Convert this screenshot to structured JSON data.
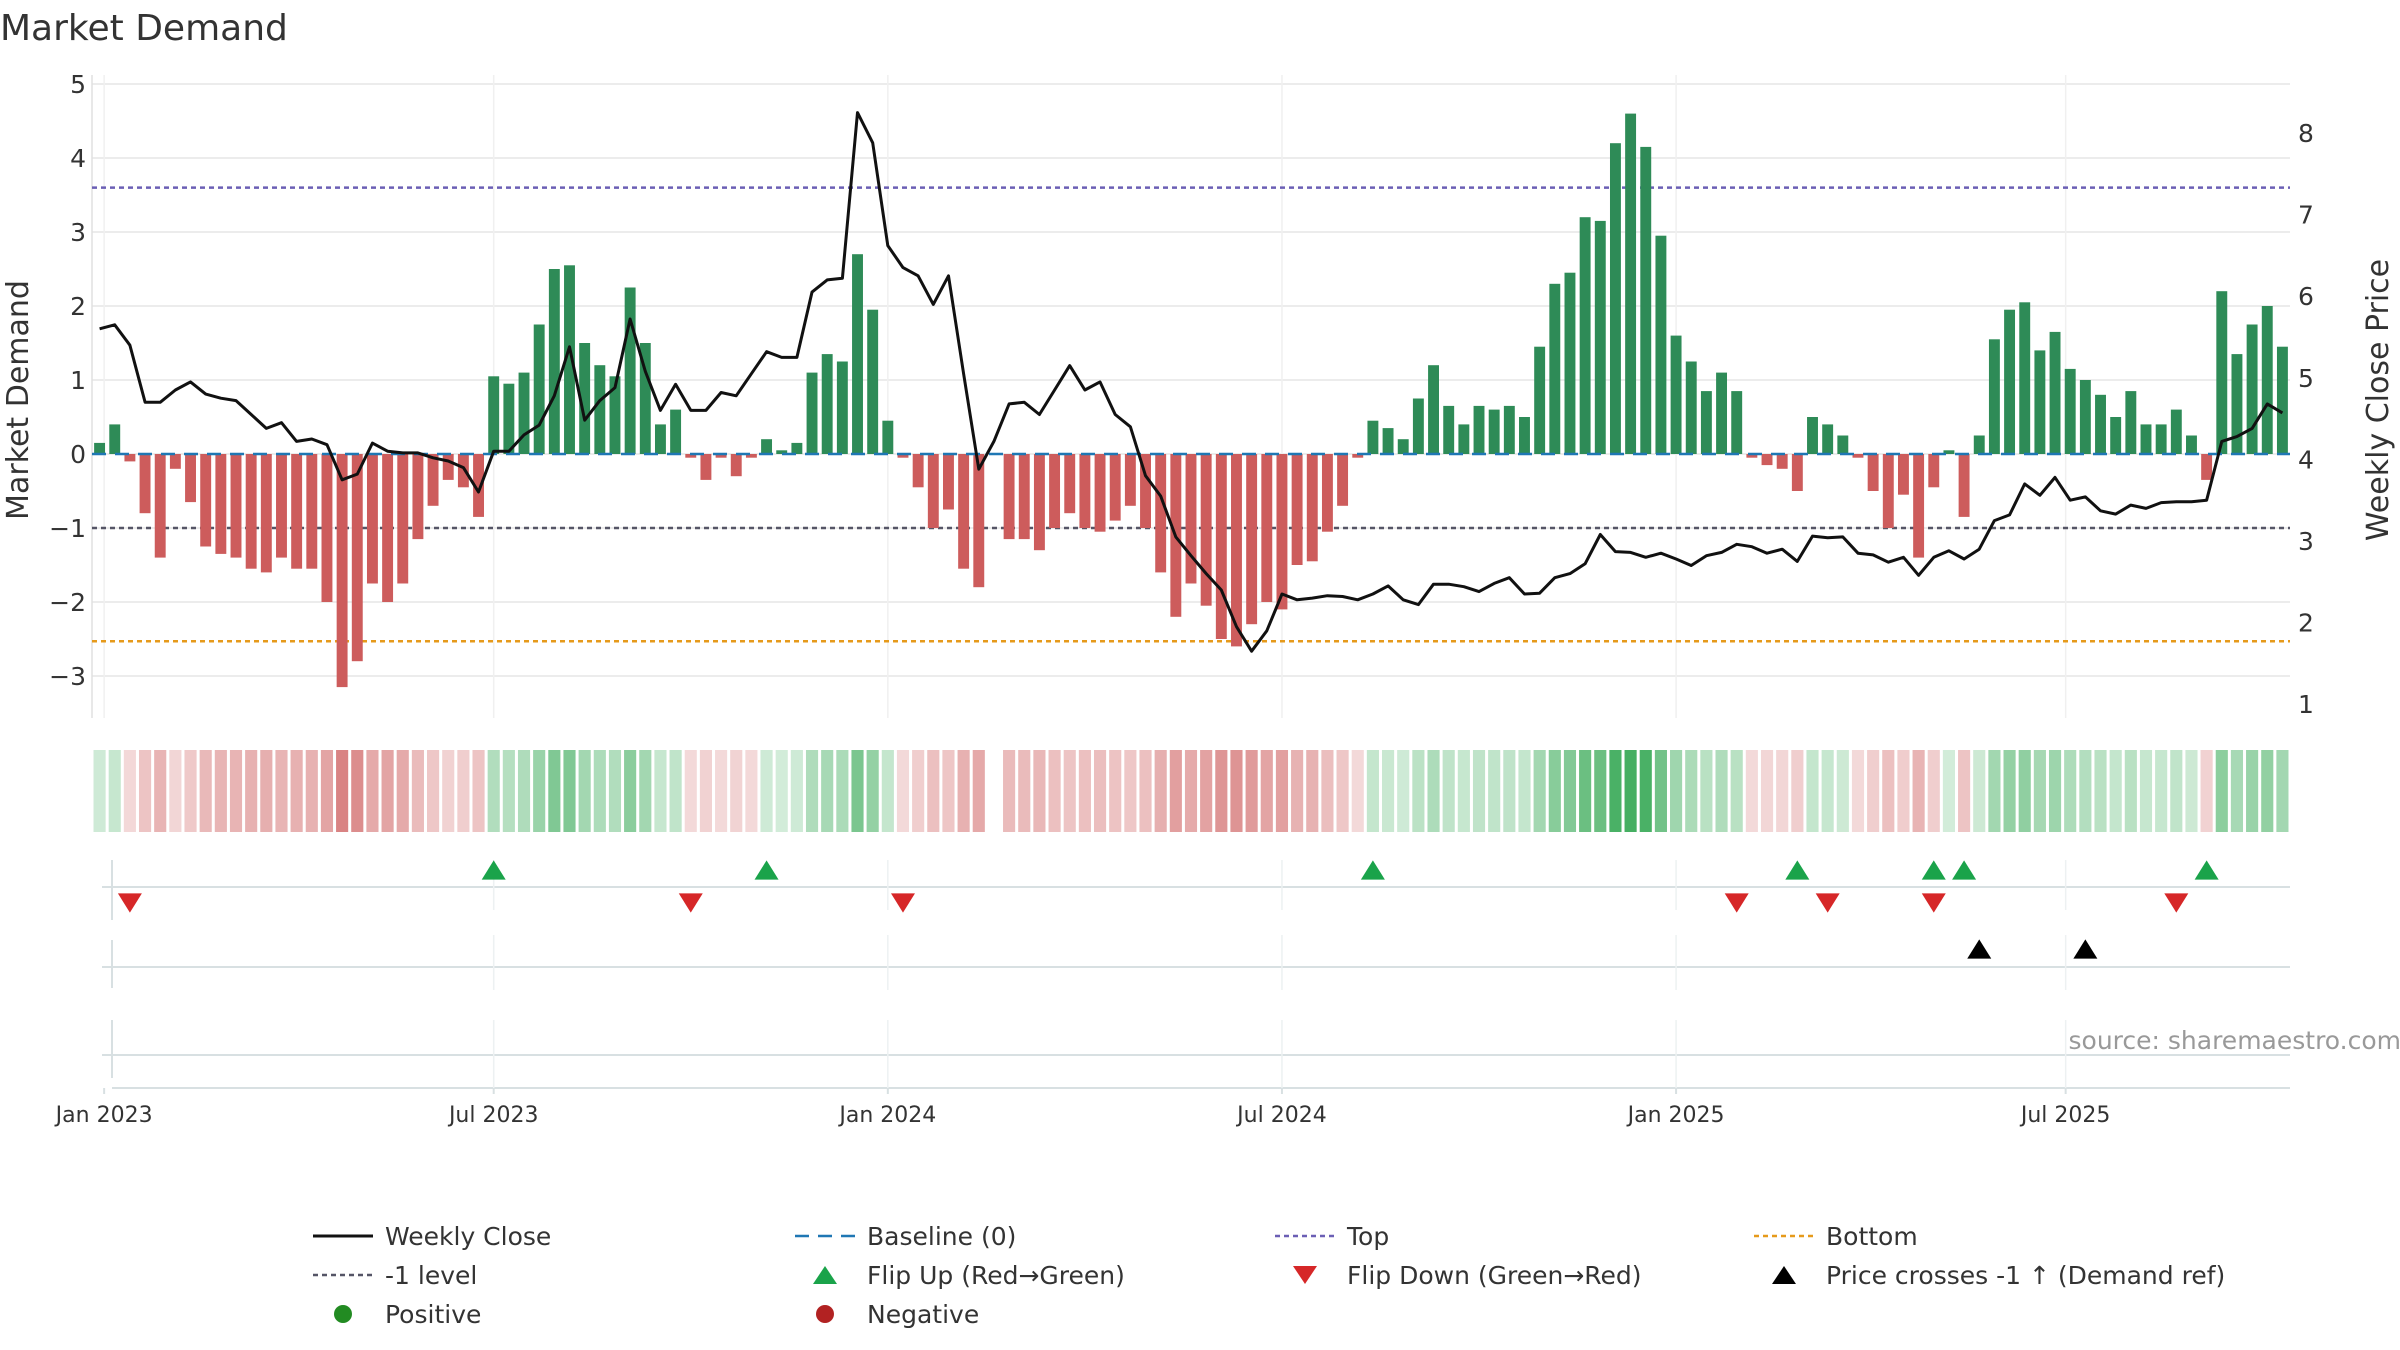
{
  "chart_data": {
    "type": "bar",
    "title": "Market Demand",
    "ylabel": "Market Demand",
    "y2label": "Weekly Close Price",
    "ylim": [
      -3.5,
      5
    ],
    "y2lim": [
      0.8,
      8.7
    ],
    "y_ticks": [
      "5",
      "4",
      "3",
      "2",
      "1",
      "0",
      "−1",
      "−2",
      "−3"
    ],
    "y_tick_values": [
      5,
      4,
      3,
      2,
      1,
      0,
      -1,
      -2,
      -3
    ],
    "y2_ticks": [
      "8",
      "7",
      "6",
      "5",
      "4",
      "3",
      "2",
      "1"
    ],
    "y2_tick_values": [
      8,
      7,
      6,
      5,
      4,
      3,
      2,
      1
    ],
    "x_ticks": [
      "Jan 2023",
      "Jul 2023",
      "Jan 2024",
      "Jul 2024",
      "Jan 2025",
      "Jul 2025"
    ],
    "x_tick_weeks": [
      0.3,
      26,
      52,
      78,
      104,
      129.7
    ],
    "reference_lines": {
      "top": 3.6,
      "bottom": -2.53,
      "minus_one": -1,
      "baseline": 0
    },
    "demand": [
      0.15,
      0.4,
      -0.1,
      -0.8,
      -1.4,
      -0.2,
      -0.65,
      -1.25,
      -1.35,
      -1.4,
      -1.55,
      -1.6,
      -1.4,
      -1.55,
      -1.55,
      -2.0,
      -3.15,
      -2.8,
      -1.75,
      -2.0,
      -1.75,
      -1.15,
      -0.7,
      -0.35,
      -0.45,
      -0.85,
      1.05,
      0.95,
      1.1,
      1.75,
      2.5,
      2.55,
      1.5,
      1.2,
      1.05,
      2.25,
      1.5,
      0.4,
      0.6,
      -0.05,
      -0.35,
      -0.05,
      -0.3,
      -0.05,
      0.2,
      0.05,
      0.15,
      1.1,
      1.35,
      1.25,
      2.7,
      1.95,
      0.45,
      -0.05,
      -0.45,
      -1.0,
      -0.75,
      -1.55,
      -1.8,
      null,
      -1.15,
      -1.15,
      -1.3,
      -1.0,
      -0.8,
      -1.0,
      -1.05,
      -0.9,
      -0.7,
      -1.0,
      -1.6,
      -2.2,
      -1.75,
      -2.05,
      -2.5,
      -2.6,
      -2.3,
      -2.0,
      -2.1,
      -1.5,
      -1.45,
      -1.05,
      -0.7,
      -0.05,
      0.45,
      0.35,
      0.2,
      0.75,
      1.2,
      0.65,
      0.4,
      0.65,
      0.6,
      0.65,
      0.5,
      1.45,
      2.3,
      2.45,
      3.2,
      3.15,
      4.2,
      4.6,
      4.15,
      2.95,
      1.6,
      1.25,
      0.85,
      1.1,
      0.85,
      -0.05,
      -0.15,
      -0.2,
      -0.5,
      0.5,
      0.4,
      0.25,
      -0.05,
      -0.5,
      -1.0,
      -0.55,
      -1.4,
      -0.45,
      0.05,
      -0.85,
      0.25,
      1.55,
      1.95,
      2.05,
      1.4,
      1.65,
      1.15,
      1.0,
      0.8,
      0.5,
      0.85,
      0.4,
      0.4,
      0.6,
      0.25,
      -0.35,
      2.2,
      1.35,
      1.75,
      2.0,
      1.45
    ],
    "weekly_close": [
      5.6,
      5.65,
      5.4,
      4.7,
      4.7,
      4.85,
      4.95,
      4.8,
      4.75,
      4.72,
      4.55,
      4.38,
      4.45,
      4.22,
      4.25,
      4.18,
      3.75,
      3.82,
      4.2,
      4.1,
      4.08,
      4.08,
      4.02,
      3.98,
      3.9,
      3.6,
      4.1,
      4.1,
      4.3,
      4.42,
      4.78,
      5.38,
      4.48,
      4.72,
      4.88,
      5.72,
      5.08,
      4.6,
      4.92,
      4.6,
      4.6,
      4.82,
      4.78,
      5.05,
      5.32,
      5.25,
      5.25,
      6.05,
      6.2,
      6.22,
      8.25,
      7.88,
      6.62,
      6.35,
      6.25,
      5.9,
      6.25,
      5.05,
      3.88,
      4.22,
      4.68,
      4.7,
      4.55,
      4.85,
      5.15,
      4.85,
      4.95,
      4.55,
      4.4,
      3.8,
      3.55,
      3.05,
      2.82,
      2.6,
      2.4,
      1.95,
      1.65,
      1.9,
      2.35,
      2.28,
      2.3,
      2.33,
      2.32,
      2.28,
      2.35,
      2.45,
      2.28,
      2.22,
      2.47,
      2.47,
      2.44,
      2.38,
      2.48,
      2.55,
      2.35,
      2.36,
      2.55,
      2.6,
      2.72,
      3.08,
      2.87,
      2.86,
      2.8,
      2.85,
      2.78,
      2.7,
      2.82,
      2.86,
      2.96,
      2.93,
      2.85,
      2.9,
      2.75,
      3.06,
      3.04,
      3.05,
      2.85,
      2.83,
      2.74,
      2.8,
      2.58,
      2.8,
      2.88,
      2.78,
      2.9,
      3.25,
      3.32,
      3.7,
      3.56,
      3.78,
      3.5,
      3.54,
      3.37,
      3.33,
      3.44,
      3.4,
      3.47,
      3.48,
      3.48,
      3.5,
      4.22,
      4.28,
      4.38,
      4.68,
      4.57
    ],
    "flip_up_weeks": [
      26,
      44,
      84,
      112,
      121,
      123,
      139
    ],
    "flip_down_weeks": [
      2,
      39,
      53,
      108,
      114,
      121,
      137
    ],
    "price_cross_weeks": [
      124,
      131
    ],
    "legend": [
      {
        "label": "Weekly Close",
        "kind": "line",
        "color": "#111111"
      },
      {
        "label": "Baseline (0)",
        "kind": "dashed",
        "color": "#1f77b4"
      },
      {
        "label": "Top",
        "kind": "dotted",
        "color": "#6b5fb5"
      },
      {
        "label": "Bottom",
        "kind": "dotted",
        "color": "#e69a1b"
      },
      {
        "label": "-1 level",
        "kind": "dotted",
        "color": "#555566"
      },
      {
        "label": "Flip Up (Red→Green)",
        "kind": "tri-up",
        "color": "#1aa34a"
      },
      {
        "label": "Flip Down (Green→Red)",
        "kind": "tri-down",
        "color": "#d62728"
      },
      {
        "label": "Price crosses -1 ↑ (Demand ref)",
        "kind": "tri-up",
        "color": "#000000"
      },
      {
        "label": "Positive",
        "kind": "dot",
        "color": "#228b22"
      },
      {
        "label": "Negative",
        "kind": "dot",
        "color": "#b22222"
      }
    ],
    "source": "source: sharemaestro.com"
  },
  "colors": {
    "positive_bar": "#2e8b57",
    "negative_bar": "#cd5c5c",
    "heat_positive": "#3cab5a",
    "heat_negative": "#cd5c5c",
    "price_line": "#111111",
    "baseline": "#1f77b4",
    "top_line": "#6b5fb5",
    "bottom_line": "#e69a1b",
    "minus_one_line": "#555566",
    "flip_up": "#1aa34a",
    "flip_down": "#d62728",
    "price_cross": "#000000",
    "grid": "#e6e6e6"
  }
}
